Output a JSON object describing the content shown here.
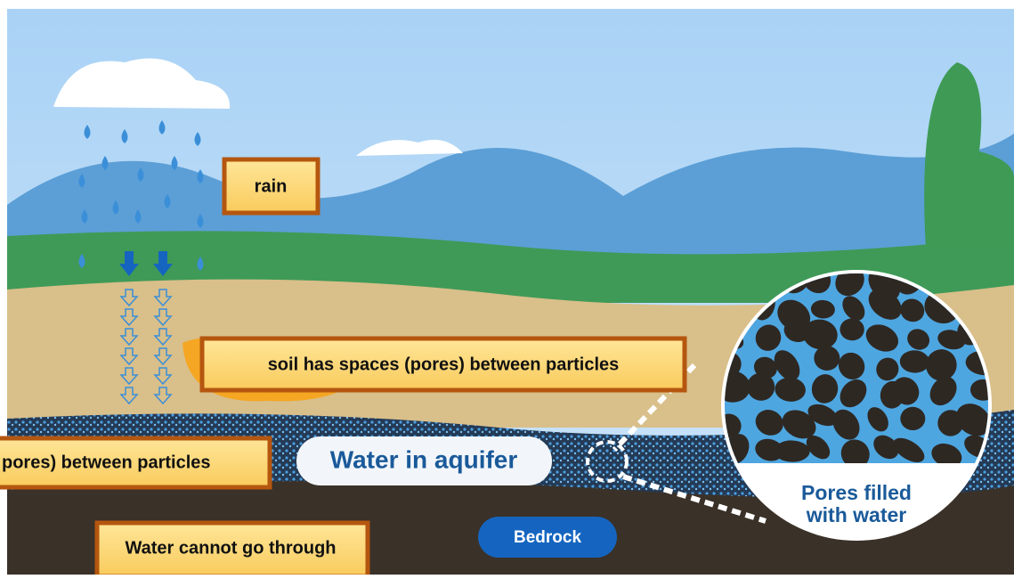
{
  "labels": {
    "rain": "rain",
    "soil": "soil has spaces (pores) between particles",
    "aquifer_pores": "pores) between particles",
    "bedrock_note": "Water cannot go through"
  },
  "scene": {
    "aquifer": "Water in aquifer",
    "bedrock": "Bedrock",
    "zoom_caption": [
      "Pores filled",
      "with water"
    ]
  }
}
